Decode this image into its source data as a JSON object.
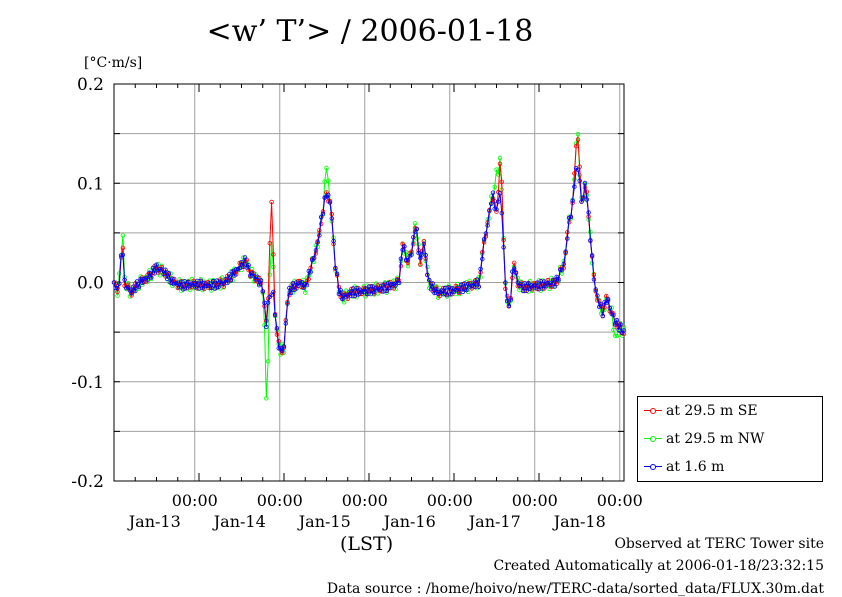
{
  "header": {
    "title": "<w’ T’> / 2006-01-18",
    "unit": "[°C·m/s]"
  },
  "footer": {
    "lst": "(LST)",
    "site": "Observed at TERC Tower site",
    "created": "Created Automatically at 2006-01-18/23:32:15",
    "source": "Data source : /home/hoivo/new/TERC-data/sorted_data/FLUX.30m.dat"
  },
  "chart_data": {
    "type": "line",
    "title": "<w’ T’> / 2006-01-18",
    "ylabel": "[°C·m/s]",
    "xlabel": "(LST)",
    "xlim": [
      0,
      6
    ],
    "ylim": [
      -0.2,
      0.2
    ],
    "yticks": [
      {
        "v": 0.2,
        "label": "0.2"
      },
      {
        "v": 0.1,
        "label": "0.1"
      },
      {
        "v": 0.0,
        "label": "0.0"
      },
      {
        "v": -0.1,
        "label": "-0.1"
      },
      {
        "v": -0.2,
        "label": "-0.2"
      }
    ],
    "xticks": [
      {
        "t": 1,
        "time": "00:00",
        "date": "Jan-13"
      },
      {
        "t": 2,
        "time": "00:00",
        "date": "Jan-14"
      },
      {
        "t": 3,
        "time": "00:00",
        "date": "Jan-15"
      },
      {
        "t": 4,
        "time": "00:00",
        "date": "Jan-16"
      },
      {
        "t": 5,
        "time": "00:00",
        "date": "Jan-17"
      },
      {
        "t": 6,
        "time": "00:00",
        "date": "Jan-18"
      }
    ],
    "grid": true,
    "legend_position": "bottom-right, outside",
    "series": [
      {
        "name": "at 29.5 m SE",
        "color": "#ff0000",
        "key": "se"
      },
      {
        "name": "at 29.5 m NW",
        "color": "#00ff00",
        "key": "nw"
      },
      {
        "name": "at 1.6 m",
        "color": "#0000ff",
        "key": "low"
      }
    ],
    "anchors": [
      [
        0.0,
        0.0
      ],
      [
        0.05,
        -0.01
      ],
      [
        0.1,
        0.04
      ],
      [
        0.12,
        0.0
      ],
      [
        0.2,
        -0.01
      ],
      [
        0.3,
        0.0
      ],
      [
        0.4,
        0.005
      ],
      [
        0.5,
        0.015
      ],
      [
        0.6,
        0.01
      ],
      [
        0.7,
        0.0
      ],
      [
        0.8,
        -0.003
      ],
      [
        0.9,
        -0.002
      ],
      [
        1.0,
        -0.002
      ],
      [
        1.1,
        -0.003
      ],
      [
        1.2,
        -0.002
      ],
      [
        1.3,
        0.0
      ],
      [
        1.4,
        0.008
      ],
      [
        1.5,
        0.018
      ],
      [
        1.55,
        0.022
      ],
      [
        1.6,
        0.01
      ],
      [
        1.7,
        0.002
      ],
      [
        1.75,
        -0.005
      ],
      [
        1.8,
        -0.05
      ],
      [
        1.85,
        0.09
      ],
      [
        1.9,
        -0.04
      ],
      [
        1.95,
        -0.07
      ],
      [
        2.0,
        -0.065
      ],
      [
        2.05,
        -0.01
      ],
      [
        2.1,
        -0.005
      ],
      [
        2.2,
        0.0
      ],
      [
        2.25,
        -0.005
      ],
      [
        2.3,
        0.01
      ],
      [
        2.4,
        0.04
      ],
      [
        2.45,
        0.07
      ],
      [
        2.5,
        0.09
      ],
      [
        2.55,
        0.08
      ],
      [
        2.6,
        0.02
      ],
      [
        2.65,
        -0.01
      ],
      [
        2.7,
        -0.015
      ],
      [
        2.8,
        -0.01
      ],
      [
        3.0,
        -0.008
      ],
      [
        3.2,
        -0.005
      ],
      [
        3.35,
        0.0
      ],
      [
        3.4,
        0.04
      ],
      [
        3.45,
        0.02
      ],
      [
        3.5,
        0.03
      ],
      [
        3.55,
        0.06
      ],
      [
        3.6,
        0.02
      ],
      [
        3.65,
        0.04
      ],
      [
        3.7,
        0.0
      ],
      [
        3.8,
        -0.01
      ],
      [
        4.0,
        -0.008
      ],
      [
        4.2,
        -0.003
      ],
      [
        4.3,
        0.0
      ],
      [
        4.35,
        0.04
      ],
      [
        4.4,
        0.06
      ],
      [
        4.45,
        0.09
      ],
      [
        4.5,
        0.07
      ],
      [
        4.55,
        0.13
      ],
      [
        4.6,
        0.0
      ],
      [
        4.65,
        -0.03
      ],
      [
        4.7,
        0.02
      ],
      [
        4.75,
        0.0
      ],
      [
        4.8,
        -0.005
      ],
      [
        5.0,
        -0.003
      ],
      [
        5.2,
        0.0
      ],
      [
        5.3,
        0.02
      ],
      [
        5.35,
        0.06
      ],
      [
        5.4,
        0.08
      ],
      [
        5.45,
        0.16
      ],
      [
        5.5,
        0.08
      ],
      [
        5.55,
        0.1
      ],
      [
        5.6,
        0.05
      ],
      [
        5.65,
        0.0
      ],
      [
        5.7,
        -0.02
      ],
      [
        5.75,
        -0.03
      ],
      [
        5.8,
        -0.015
      ],
      [
        5.85,
        -0.03
      ],
      [
        5.9,
        -0.04
      ],
      [
        5.95,
        -0.045
      ],
      [
        6.0,
        -0.05
      ]
    ],
    "series_offsets": {
      "se": [
        [
          1.85,
          0.0
        ]
      ],
      "nw": [
        [
          0.1,
          0.015
        ],
        [
          1.8,
          -0.09
        ],
        [
          1.85,
          -0.04
        ],
        [
          2.5,
          0.03
        ],
        [
          4.5,
          0.04
        ],
        [
          5.9,
          -0.02
        ]
      ],
      "low": [
        [
          1.85,
          -0.1
        ],
        [
          4.55,
          -0.04
        ],
        [
          5.45,
          -0.04
        ]
      ]
    }
  }
}
